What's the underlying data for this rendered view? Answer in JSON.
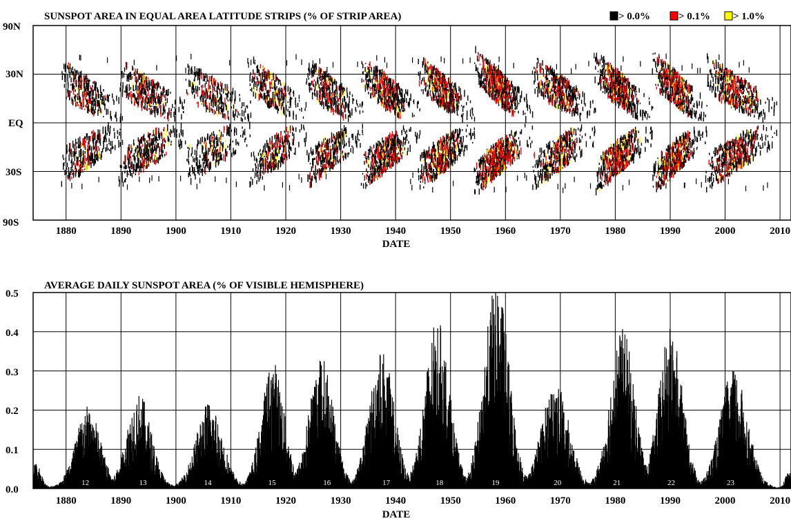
{
  "chart_data": [
    {
      "type": "heatmap",
      "title": "SUNSPOT AREA IN EQUAL AREA LATITUDE STRIPS (% OF STRIP AREA)",
      "xlabel": "DATE",
      "ylabel": "",
      "xlim": [
        1874,
        2012
      ],
      "x_ticks": [
        1880,
        1890,
        1900,
        1910,
        1920,
        1930,
        1940,
        1950,
        1960,
        1970,
        1980,
        1990,
        2000,
        2010
      ],
      "y_scale": "sine-latitude (equal area)",
      "y_tick_labels": [
        "90N",
        "30N",
        "EQ",
        "30S",
        "90S"
      ],
      "y_tick_values": [
        90,
        30,
        0,
        -30,
        -90
      ],
      "grid": true,
      "legend_position": "top-right",
      "legend": [
        {
          "label": "> 0.0%",
          "color": "#000000"
        },
        {
          "label": "> 0.1%",
          "color": "#ff0000"
        },
        {
          "label": "> 1.0%",
          "color": "#ffff00"
        }
      ],
      "cycles": [
        {
          "start": 1879.0,
          "end": 1890.3,
          "start_lat": 30,
          "end_lat": 5,
          "intensity": 0.55
        },
        {
          "start": 1889.6,
          "end": 1901.8,
          "start_lat": 30,
          "end_lat": 5,
          "intensity": 0.55
        },
        {
          "start": 1901.7,
          "end": 1913.6,
          "start_lat": 28,
          "end_lat": 5,
          "intensity": 0.45
        },
        {
          "start": 1913.4,
          "end": 1923.8,
          "start_lat": 32,
          "end_lat": 5,
          "intensity": 0.6
        },
        {
          "start": 1923.6,
          "end": 1934.0,
          "start_lat": 31,
          "end_lat": 5,
          "intensity": 0.6
        },
        {
          "start": 1933.7,
          "end": 1944.4,
          "start_lat": 33,
          "end_lat": 5,
          "intensity": 0.8
        },
        {
          "start": 1944.1,
          "end": 1954.5,
          "start_lat": 34,
          "end_lat": 5,
          "intensity": 0.85
        },
        {
          "start": 1954.3,
          "end": 1964.9,
          "start_lat": 38,
          "end_lat": 5,
          "intensity": 1.0
        },
        {
          "start": 1964.8,
          "end": 1976.4,
          "start_lat": 33,
          "end_lat": 5,
          "intensity": 0.7
        },
        {
          "start": 1976.2,
          "end": 1986.8,
          "start_lat": 36,
          "end_lat": 5,
          "intensity": 0.9
        },
        {
          "start": 1986.7,
          "end": 1996.6,
          "start_lat": 37,
          "end_lat": 5,
          "intensity": 0.9
        },
        {
          "start": 1996.4,
          "end": 2009.4,
          "start_lat": 33,
          "end_lat": 5,
          "intensity": 0.75
        }
      ]
    },
    {
      "type": "bar",
      "title": "AVERAGE DAILY SUNSPOT AREA (% OF VISIBLE HEMISPHERE)",
      "xlabel": "DATE",
      "ylabel": "",
      "xlim": [
        1874,
        2012
      ],
      "ylim": [
        0,
        0.5
      ],
      "x_ticks": [
        1880,
        1890,
        1900,
        1910,
        1920,
        1930,
        1940,
        1950,
        1960,
        1970,
        1980,
        1990,
        2000,
        2010
      ],
      "y_tick_labels": [
        "0.0",
        "0.1",
        "0.2",
        "0.3",
        "0.4",
        "0.5"
      ],
      "y_tick_values": [
        0,
        0.1,
        0.2,
        0.3,
        0.4,
        0.5
      ],
      "grid": true,
      "cycle_labels": [
        {
          "label": "12",
          "x": 1883.5
        },
        {
          "label": "13",
          "x": 1894.0
        },
        {
          "label": "14",
          "x": 1905.8
        },
        {
          "label": "15",
          "x": 1917.5
        },
        {
          "label": "16",
          "x": 1927.5
        },
        {
          "label": "17",
          "x": 1938.3
        },
        {
          "label": "18",
          "x": 1948.0
        },
        {
          "label": "19",
          "x": 1958.2
        },
        {
          "label": "20",
          "x": 1969.5
        },
        {
          "label": "21",
          "x": 1980.3
        },
        {
          "label": "22",
          "x": 1990.2
        },
        {
          "label": "23",
          "x": 2001.0
        }
      ],
      "peaks": [
        {
          "year": 1883.9,
          "peak": 0.2,
          "width": 3.0
        },
        {
          "year": 1893.2,
          "peak": 0.23,
          "width": 3.0
        },
        {
          "year": 1906.0,
          "peak": 0.21,
          "width": 3.2
        },
        {
          "year": 1917.6,
          "peak": 0.31,
          "width": 2.8
        },
        {
          "year": 1926.4,
          "peak": 0.32,
          "width": 3.0
        },
        {
          "year": 1937.4,
          "peak": 0.34,
          "width": 3.0
        },
        {
          "year": 1947.5,
          "peak": 0.41,
          "width": 3.0
        },
        {
          "year": 1958.3,
          "peak": 0.51,
          "width": 3.0
        },
        {
          "year": 1969.0,
          "peak": 0.26,
          "width": 3.3
        },
        {
          "year": 1981.2,
          "peak": 0.39,
          "width": 3.0
        },
        {
          "year": 1990.0,
          "peak": 0.39,
          "width": 2.9
        },
        {
          "year": 2001.5,
          "peak": 0.29,
          "width": 3.3
        },
        {
          "year": 1874.5,
          "peak": 0.06,
          "width": 1.2
        },
        {
          "year": 2011.5,
          "peak": 0.04,
          "width": 0.8
        }
      ]
    }
  ]
}
